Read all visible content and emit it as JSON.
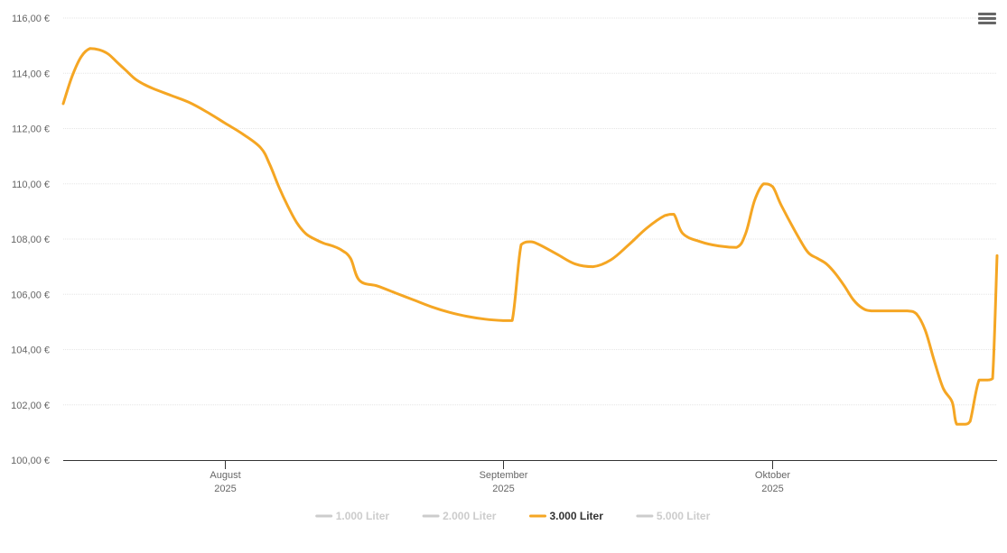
{
  "chart_data": {
    "type": "line",
    "title": "",
    "xlabel": "",
    "ylabel": "",
    "x_range": [
      "2025-07-14",
      "2025-10-26"
    ],
    "ylim": [
      100,
      116
    ],
    "y_ticks": [
      100,
      102,
      104,
      106,
      108,
      110,
      112,
      114,
      116
    ],
    "y_tick_labels": [
      "100,00 €",
      "102,00 €",
      "104,00 €",
      "106,00 €",
      "108,00 €",
      "110,00 €",
      "112,00 €",
      "114,00 €",
      "116,00 €"
    ],
    "x_ticks": [
      {
        "date": "2025-08-01",
        "label_line1": "August",
        "label_line2": "2025"
      },
      {
        "date": "2025-09-01",
        "label_line1": "September",
        "label_line2": "2025"
      },
      {
        "date": "2025-10-01",
        "label_line1": "Oktober",
        "label_line2": "2025"
      }
    ],
    "grid": true,
    "legend_position": "bottom-center",
    "series": [
      {
        "name": "1.000 Liter",
        "color": "#cccccc",
        "visible": false,
        "points": []
      },
      {
        "name": "2.000 Liter",
        "color": "#cccccc",
        "visible": false,
        "points": []
      },
      {
        "name": "3.000 Liter",
        "color": "#f5a623",
        "visible": true,
        "points": [
          [
            "2025-07-14",
            112.9
          ],
          [
            "2025-07-15",
            113.9
          ],
          [
            "2025-07-16",
            114.6
          ],
          [
            "2025-07-17",
            114.9
          ],
          [
            "2025-07-18",
            114.85
          ],
          [
            "2025-07-19",
            114.7
          ],
          [
            "2025-07-20",
            114.4
          ],
          [
            "2025-07-21",
            114.1
          ],
          [
            "2025-07-22",
            113.8
          ],
          [
            "2025-07-23",
            113.6
          ],
          [
            "2025-07-24",
            113.45
          ],
          [
            "2025-07-26",
            113.2
          ],
          [
            "2025-07-28",
            112.95
          ],
          [
            "2025-07-30",
            112.6
          ],
          [
            "2025-08-01",
            112.2
          ],
          [
            "2025-08-03",
            111.8
          ],
          [
            "2025-08-05",
            111.3
          ],
          [
            "2025-08-06",
            110.7
          ],
          [
            "2025-08-07",
            109.9
          ],
          [
            "2025-08-08",
            109.2
          ],
          [
            "2025-08-09",
            108.6
          ],
          [
            "2025-08-10",
            108.2
          ],
          [
            "2025-08-11",
            108.0
          ],
          [
            "2025-08-12",
            107.85
          ],
          [
            "2025-08-13",
            107.75
          ],
          [
            "2025-08-14",
            107.6
          ],
          [
            "2025-08-15",
            107.3
          ],
          [
            "2025-08-16",
            106.5
          ],
          [
            "2025-08-18",
            106.3
          ],
          [
            "2025-08-20",
            106.05
          ],
          [
            "2025-08-22",
            105.8
          ],
          [
            "2025-08-24",
            105.55
          ],
          [
            "2025-08-26",
            105.35
          ],
          [
            "2025-08-28",
            105.2
          ],
          [
            "2025-08-30",
            105.1
          ],
          [
            "2025-09-01",
            105.05
          ],
          [
            "2025-09-02",
            105.05
          ],
          [
            "2025-09-03",
            107.8
          ],
          [
            "2025-09-04",
            107.9
          ],
          [
            "2025-09-05",
            107.8
          ],
          [
            "2025-09-07",
            107.45
          ],
          [
            "2025-09-09",
            107.1
          ],
          [
            "2025-09-11",
            107.0
          ],
          [
            "2025-09-13",
            107.25
          ],
          [
            "2025-09-15",
            107.8
          ],
          [
            "2025-09-17",
            108.4
          ],
          [
            "2025-09-19",
            108.85
          ],
          [
            "2025-09-20",
            108.9
          ],
          [
            "2025-09-21",
            108.2
          ],
          [
            "2025-09-23",
            107.9
          ],
          [
            "2025-09-25",
            107.75
          ],
          [
            "2025-09-27",
            107.7
          ],
          [
            "2025-09-28",
            108.2
          ],
          [
            "2025-09-29",
            109.4
          ],
          [
            "2025-09-30",
            110.0
          ],
          [
            "2025-10-01",
            109.9
          ],
          [
            "2025-10-02",
            109.2
          ],
          [
            "2025-10-04",
            108.0
          ],
          [
            "2025-10-05",
            107.5
          ],
          [
            "2025-10-06",
            107.3
          ],
          [
            "2025-10-07",
            107.1
          ],
          [
            "2025-10-08",
            106.75
          ],
          [
            "2025-10-09",
            106.3
          ],
          [
            "2025-10-10",
            105.8
          ],
          [
            "2025-10-11",
            105.5
          ],
          [
            "2025-10-12",
            105.4
          ],
          [
            "2025-10-14",
            105.4
          ],
          [
            "2025-10-16",
            105.4
          ],
          [
            "2025-10-17",
            105.3
          ],
          [
            "2025-10-18",
            104.7
          ],
          [
            "2025-10-19",
            103.6
          ],
          [
            "2025-10-20",
            102.6
          ],
          [
            "2025-10-21",
            102.1
          ],
          [
            "2025-10-21T12",
            101.3
          ],
          [
            "2025-10-22T12",
            101.3
          ],
          [
            "2025-10-23",
            101.4
          ],
          [
            "2025-10-24",
            102.9
          ],
          [
            "2025-10-25",
            102.9
          ],
          [
            "2025-10-25T12",
            102.95
          ],
          [
            "2025-10-26",
            107.4
          ]
        ]
      },
      {
        "name": "5.000 Liter",
        "color": "#cccccc",
        "visible": false,
        "points": []
      }
    ]
  },
  "ui": {
    "menu_icon": "hamburger-menu-icon",
    "axis_color": "#333333",
    "grid_color": "#e6e6e6",
    "hidden_legend_color": "#cccccc",
    "visible_legend_text_color": "#333333"
  }
}
